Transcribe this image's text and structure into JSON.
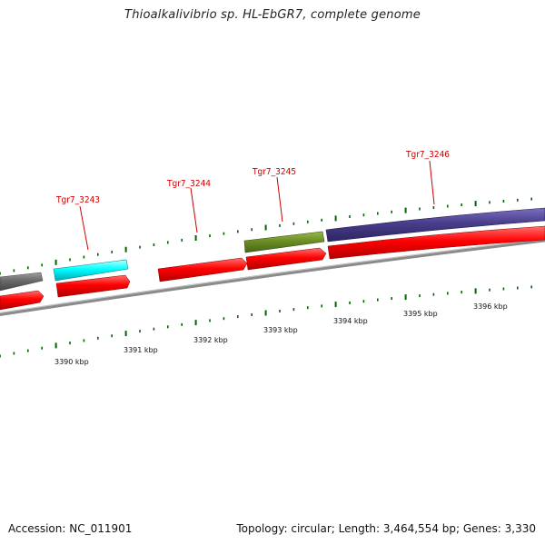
{
  "title": "Thioalkalivibrio sp. HL-EbGR7, complete genome",
  "footer": {
    "accession": "Accession: NC_011901",
    "summary": "Topology: circular; Length: 3,464,554 bp; Genes: 3,330"
  },
  "gene_labels": [
    "Tgr7_3243",
    "Tgr7_3244",
    "Tgr7_3245",
    "Tgr7_3246"
  ],
  "kbp_labels": [
    "3390 kbp",
    "3391 kbp",
    "3392 kbp",
    "3393 kbp",
    "3394 kbp",
    "3395 kbp",
    "3396 kbp"
  ],
  "colors": {
    "gene_red": "#ff0000",
    "gene_cyan": "#00ffff",
    "gene_olive": "#6b8e23",
    "gene_slate": "#483d8b",
    "gene_gray": "#696969",
    "backbone": "#808080",
    "tick": "#006400",
    "label": "#cc0000"
  }
}
